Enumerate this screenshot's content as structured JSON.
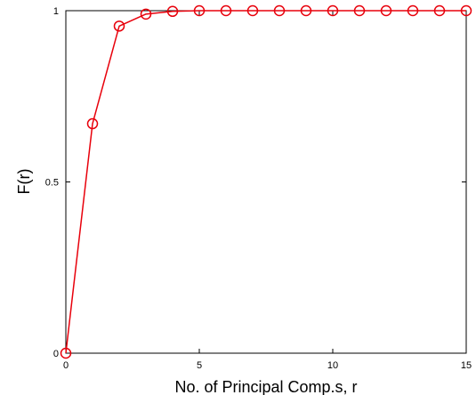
{
  "chart_data": {
    "type": "line",
    "title": "",
    "xlabel": "No. of Principal Comp.s, r",
    "ylabel": "F(r)",
    "xlim": [
      0,
      15
    ],
    "ylim": [
      0,
      1
    ],
    "x_ticks": [
      0,
      5,
      10,
      15
    ],
    "y_ticks": [
      0,
      0.5,
      1
    ],
    "grid": false,
    "series": [
      {
        "color": "#e8000b",
        "marker": "circle",
        "x": [
          0,
          1,
          2,
          3,
          4,
          5,
          6,
          7,
          8,
          9,
          10,
          11,
          12,
          13,
          14,
          15
        ],
        "y": [
          0,
          0.67,
          0.955,
          0.99,
          0.998,
          1.0,
          1.0,
          1.0,
          1.0,
          1.0,
          1.0,
          1.0,
          1.0,
          1.0,
          1.0,
          1.0
        ]
      }
    ]
  }
}
